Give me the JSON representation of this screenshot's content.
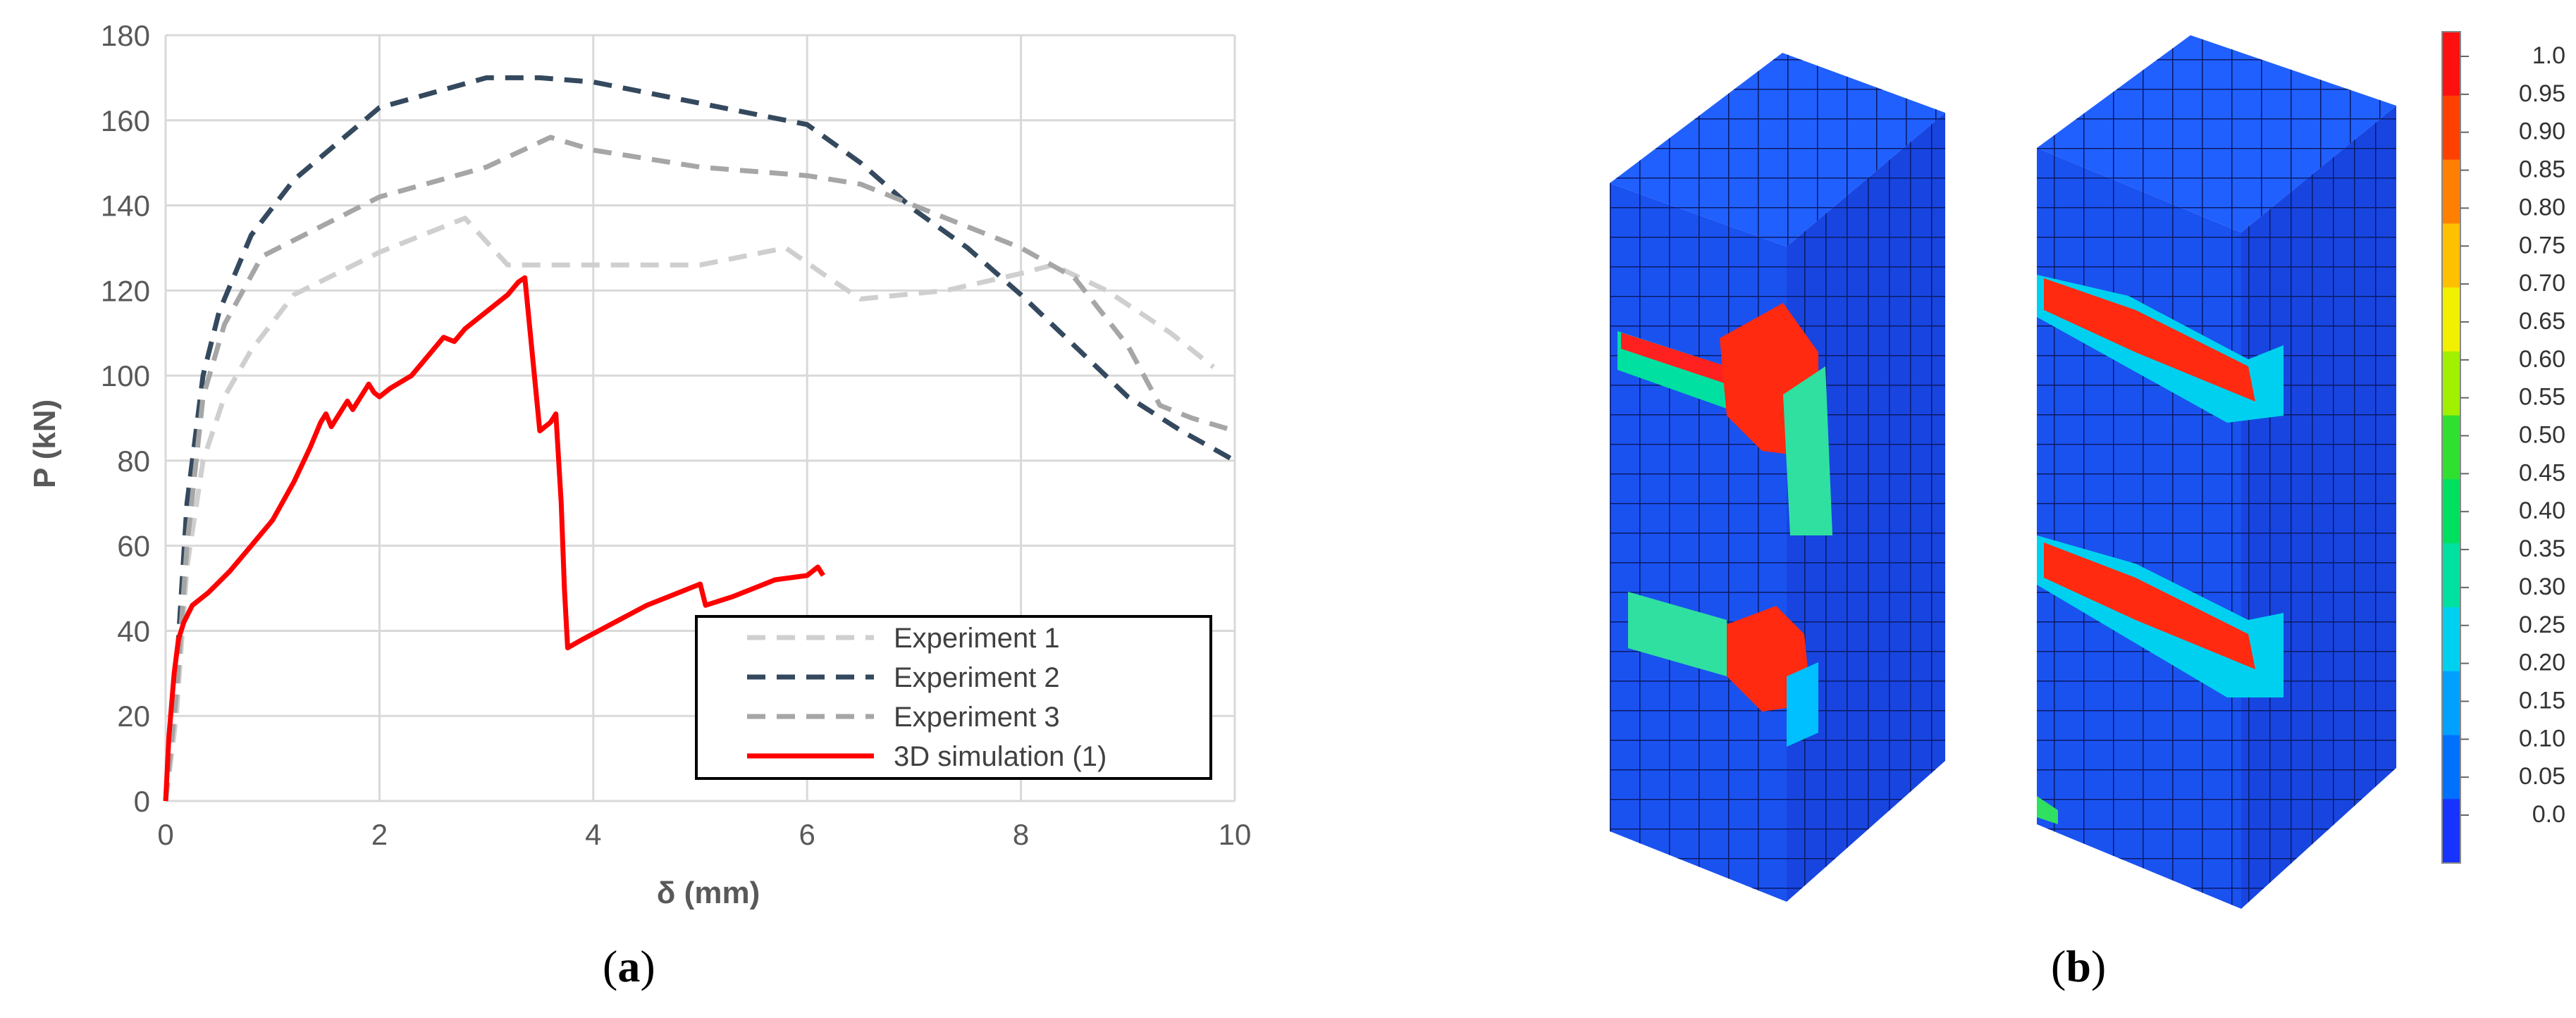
{
  "chart_data": [
    {
      "type": "line",
      "panel_label": "a",
      "xlabel": "δ (mm)",
      "ylabel": "P (kN)",
      "xlim": [
        0,
        10
      ],
      "ylim": [
        0,
        180
      ],
      "x_ticks": [
        "0",
        "2",
        "4",
        "6",
        "8",
        "10"
      ],
      "y_ticks": [
        "0",
        "20",
        "40",
        "60",
        "80",
        "100",
        "120",
        "140",
        "160",
        "180"
      ],
      "grid": true,
      "legend_position": "bottom-right",
      "series": [
        {
          "name": "Experiment 1",
          "color": "#cfcfcf",
          "style": "dashed",
          "points": [
            [
              0,
              0
            ],
            [
              0.1,
              20
            ],
            [
              0.2,
              55
            ],
            [
              0.35,
              80
            ],
            [
              0.55,
              95
            ],
            [
              0.8,
              106
            ],
            [
              1.2,
              119
            ],
            [
              2,
              129
            ],
            [
              2.8,
              137
            ],
            [
              3.2,
              126
            ],
            [
              4,
              126
            ],
            [
              5,
              126
            ],
            [
              5.8,
              130
            ],
            [
              6.2,
              123
            ],
            [
              6.5,
              118
            ],
            [
              7.3,
              120
            ],
            [
              8,
              124
            ],
            [
              8.3,
              126
            ],
            [
              8.8,
              120
            ],
            [
              9.4,
              110
            ],
            [
              9.8,
              102
            ]
          ]
        },
        {
          "name": "Experiment 2",
          "color": "#34495e",
          "style": "dashed",
          "points": [
            [
              0,
              0
            ],
            [
              0.1,
              30
            ],
            [
              0.2,
              70
            ],
            [
              0.35,
              100
            ],
            [
              0.5,
              115
            ],
            [
              0.8,
              133
            ],
            [
              1.2,
              146
            ],
            [
              2,
              163
            ],
            [
              3,
              170
            ],
            [
              3.5,
              170
            ],
            [
              4,
              169
            ],
            [
              5,
              164
            ],
            [
              6,
              159
            ],
            [
              6.5,
              150
            ],
            [
              7,
              139
            ],
            [
              7.5,
              130
            ],
            [
              8,
              119
            ],
            [
              8.5,
              107
            ],
            [
              9,
              95
            ],
            [
              9.5,
              87
            ],
            [
              10,
              80
            ]
          ]
        },
        {
          "name": "Experiment 3",
          "color": "#a6a6a6",
          "style": "dashed",
          "points": [
            [
              0,
              0
            ],
            [
              0.1,
              25
            ],
            [
              0.2,
              60
            ],
            [
              0.35,
              95
            ],
            [
              0.55,
              112
            ],
            [
              0.9,
              128
            ],
            [
              2,
              142
            ],
            [
              3,
              149
            ],
            [
              3.6,
              156
            ],
            [
              4,
              153
            ],
            [
              5,
              149
            ],
            [
              6,
              147
            ],
            [
              6.5,
              145
            ],
            [
              7,
              140
            ],
            [
              8,
              130
            ],
            [
              8.5,
              123
            ],
            [
              9,
              107
            ],
            [
              9.3,
              93
            ],
            [
              9.6,
              90
            ],
            [
              10,
              87
            ]
          ]
        },
        {
          "name": "3D simulation (1)",
          "color": "#ff0000",
          "style": "solid",
          "points": [
            [
              0,
              0
            ],
            [
              0.03,
              15
            ],
            [
              0.08,
              30
            ],
            [
              0.12,
              38
            ],
            [
              0.17,
              42
            ],
            [
              0.25,
              46
            ],
            [
              0.4,
              49
            ],
            [
              0.6,
              54
            ],
            [
              0.8,
              60
            ],
            [
              1.0,
              66
            ],
            [
              1.2,
              75
            ],
            [
              1.35,
              83
            ],
            [
              1.45,
              89
            ],
            [
              1.5,
              91
            ],
            [
              1.55,
              88
            ],
            [
              1.65,
              92
            ],
            [
              1.7,
              94
            ],
            [
              1.75,
              92
            ],
            [
              1.85,
              96
            ],
            [
              1.9,
              98
            ],
            [
              1.95,
              96
            ],
            [
              2.0,
              95
            ],
            [
              2.1,
              97
            ],
            [
              2.3,
              100
            ],
            [
              2.5,
              106
            ],
            [
              2.6,
              109
            ],
            [
              2.7,
              108
            ],
            [
              2.8,
              111
            ],
            [
              3.0,
              115
            ],
            [
              3.2,
              119
            ],
            [
              3.3,
              122
            ],
            [
              3.36,
              123
            ],
            [
              3.5,
              87
            ],
            [
              3.6,
              89
            ],
            [
              3.65,
              91
            ],
            [
              3.7,
              70
            ],
            [
              3.73,
              50
            ],
            [
              3.76,
              36
            ],
            [
              3.9,
              38
            ],
            [
              4.2,
              42
            ],
            [
              4.5,
              46
            ],
            [
              4.8,
              49
            ],
            [
              5.0,
              51
            ],
            [
              5.05,
              46
            ],
            [
              5.3,
              48
            ],
            [
              5.5,
              50
            ],
            [
              5.7,
              52
            ],
            [
              6.0,
              53
            ],
            [
              6.1,
              55
            ],
            [
              6.15,
              53
            ]
          ]
        }
      ]
    },
    {
      "type": "heatmap",
      "panel_label": "b",
      "colorbar_ticks": [
        "1.0",
        "0.95",
        "0.90",
        "0.85",
        "0.80",
        "0.75",
        "0.70",
        "0.65",
        "0.60",
        "0.55",
        "0.50",
        "0.45",
        "0.40",
        "0.35",
        "0.30",
        "0.25",
        "0.20",
        "0.15",
        "0.10",
        "0.05",
        "0.0"
      ],
      "colorbar_colors": [
        "#1733ff",
        "#0070ff",
        "#00a0ff",
        "#00d0f0",
        "#00e0a0",
        "#00e060",
        "#30e030",
        "#a0f000",
        "#f0f000",
        "#ffc000",
        "#ff8000",
        "#ff4000",
        "#ff1010"
      ]
    }
  ],
  "captions": {
    "a": "a",
    "b": "b"
  }
}
